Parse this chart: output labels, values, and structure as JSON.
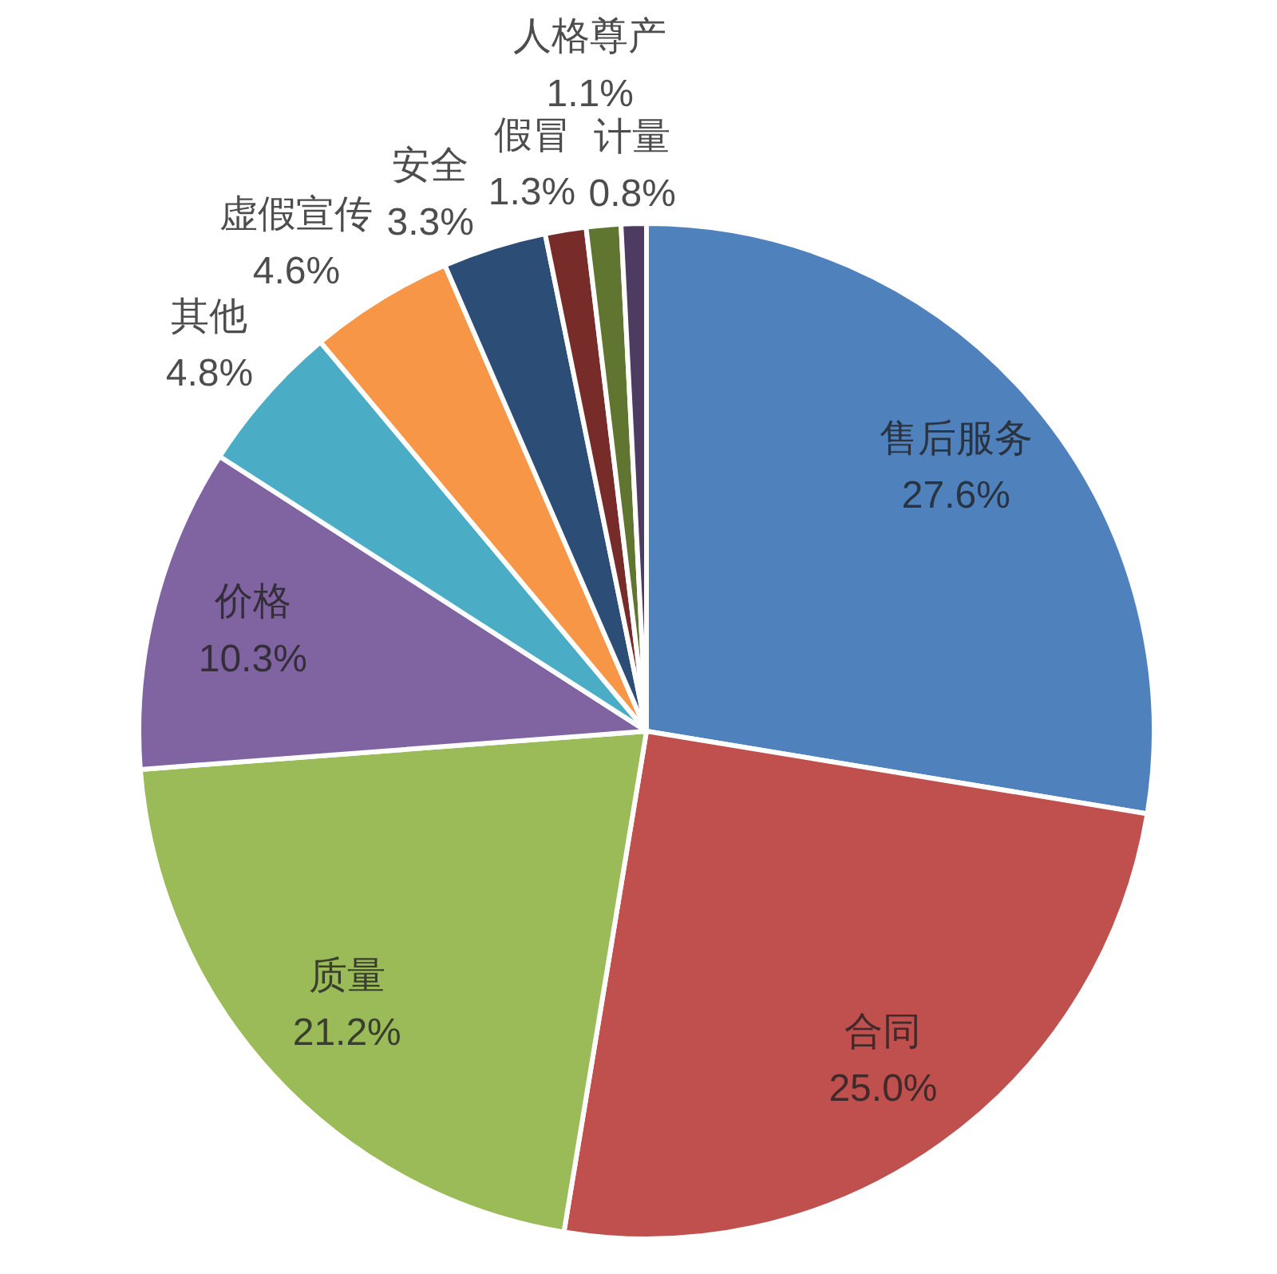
{
  "chart_data": {
    "type": "pie",
    "categories": [
      "售后服务",
      "合同",
      "质量",
      "价格",
      "其他",
      "虚假宣传",
      "安全",
      "假冒",
      "人格尊产",
      "计量"
    ],
    "values": [
      27.6,
      25.0,
      21.2,
      10.3,
      4.8,
      4.6,
      3.3,
      1.3,
      1.1,
      0.8
    ],
    "colors": [
      "#4f81bd",
      "#c0504d",
      "#9bbb59",
      "#8064a2",
      "#4bacc6",
      "#f79646",
      "#2c4d75",
      "#772c2a",
      "#5f7530",
      "#4d3b62"
    ],
    "value_labels": [
      "27.6%",
      "25.0%",
      "21.2%",
      "10.3%",
      "4.8%",
      "4.6%",
      "3.3%",
      "1.3%",
      "1.1%",
      "0.8%"
    ]
  }
}
